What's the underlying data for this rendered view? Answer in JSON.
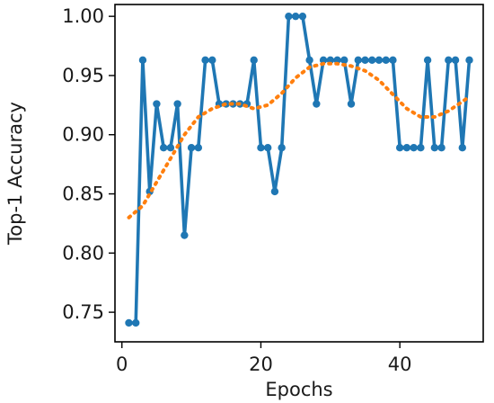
{
  "chart_data": {
    "type": "line",
    "title": "",
    "xlabel": "Epochs",
    "ylabel": "Top-1 Accuracy",
    "xlim": [
      -1,
      52
    ],
    "ylim": [
      0.725,
      1.01
    ],
    "xticks": [
      0,
      20,
      40
    ],
    "xtick_labels": [
      "0",
      "20",
      "40"
    ],
    "yticks": [
      0.75,
      0.8,
      0.85,
      0.9,
      0.95,
      1.0
    ],
    "ytick_labels": [
      "0.75",
      "0.80",
      "0.85",
      "0.90",
      "0.95",
      "1.00"
    ],
    "grid": false,
    "legend": "none",
    "series": [
      {
        "style": "solid-with-markers",
        "color": "#1f77b4",
        "x": [
          1,
          2,
          3,
          4,
          5,
          6,
          7,
          8,
          9,
          10,
          11,
          12,
          13,
          14,
          15,
          16,
          17,
          18,
          19,
          20,
          21,
          22,
          23,
          24,
          25,
          26,
          27,
          28,
          29,
          30,
          31,
          32,
          33,
          34,
          35,
          36,
          37,
          38,
          39,
          40,
          41,
          42,
          43,
          44,
          45,
          46,
          47,
          48,
          49,
          50
        ],
        "y": [
          0.741,
          0.741,
          0.963,
          0.852,
          0.926,
          0.889,
          0.889,
          0.926,
          0.815,
          0.889,
          0.889,
          0.963,
          0.963,
          0.926,
          0.926,
          0.926,
          0.926,
          0.926,
          0.963,
          0.889,
          0.889,
          0.852,
          0.889,
          1.0,
          1.0,
          1.0,
          0.963,
          0.926,
          0.963,
          0.963,
          0.963,
          0.963,
          0.926,
          0.963,
          0.963,
          0.963,
          0.963,
          0.963,
          0.963,
          0.889,
          0.889,
          0.889,
          0.889,
          0.963,
          0.889,
          0.889,
          0.963,
          0.963,
          0.889,
          0.963
        ]
      },
      {
        "style": "dotted",
        "color": "#ff7f0e",
        "x": [
          1,
          3,
          5,
          7,
          9,
          11,
          13,
          15,
          17,
          19,
          21,
          23,
          25,
          27,
          29,
          31,
          33,
          35,
          37,
          39,
          41,
          43,
          45,
          47,
          49,
          50
        ],
        "y": [
          0.83,
          0.84,
          0.86,
          0.88,
          0.9,
          0.915,
          0.922,
          0.926,
          0.926,
          0.922,
          0.925,
          0.935,
          0.948,
          0.957,
          0.96,
          0.96,
          0.958,
          0.954,
          0.946,
          0.934,
          0.922,
          0.915,
          0.915,
          0.92,
          0.928,
          0.932
        ]
      }
    ]
  }
}
